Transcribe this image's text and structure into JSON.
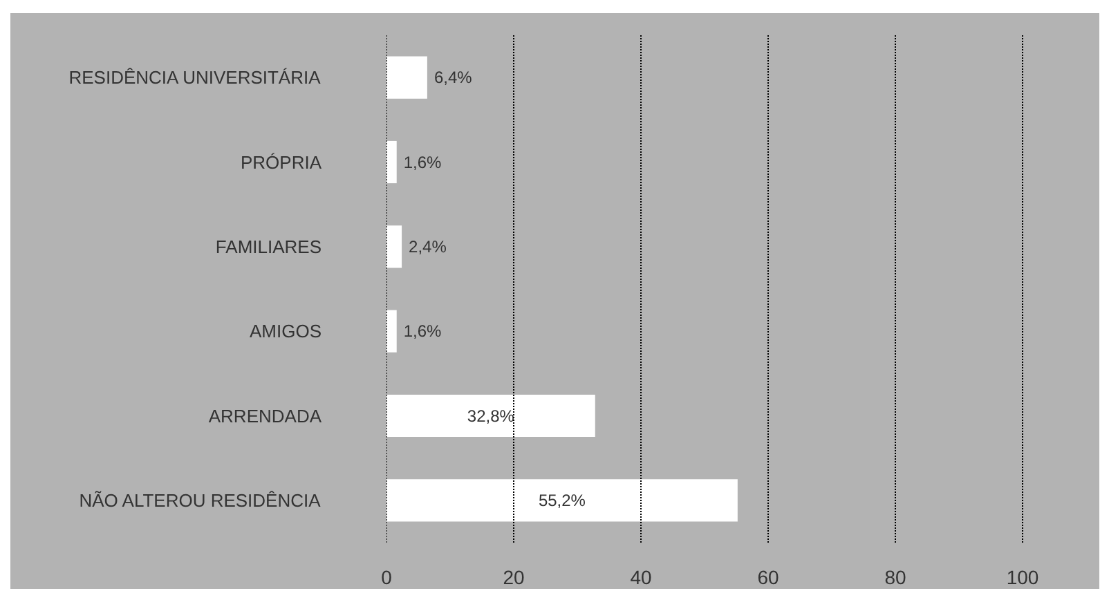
{
  "chart_data": {
    "type": "bar",
    "orientation": "horizontal",
    "categories": [
      "RESIDÊNCIA UNIVERSITÁRIA",
      "PRÓPRIA",
      "FAMILIARES",
      "AMIGOS",
      "ARRENDADA",
      "NÃO ALTEROU RESIDÊNCIA"
    ],
    "values": [
      6.4,
      1.6,
      2.4,
      1.6,
      32.8,
      55.2
    ],
    "color": "#ffffff",
    "value_labels": [
      "6,4%",
      "1,6%",
      "2,4%",
      "1,6%",
      "32,8%",
      "55,2%"
    ],
    "xlim": [
      0,
      110
    ],
    "xticks": [
      0,
      20,
      40,
      60,
      80,
      100
    ],
    "grid": "x"
  }
}
